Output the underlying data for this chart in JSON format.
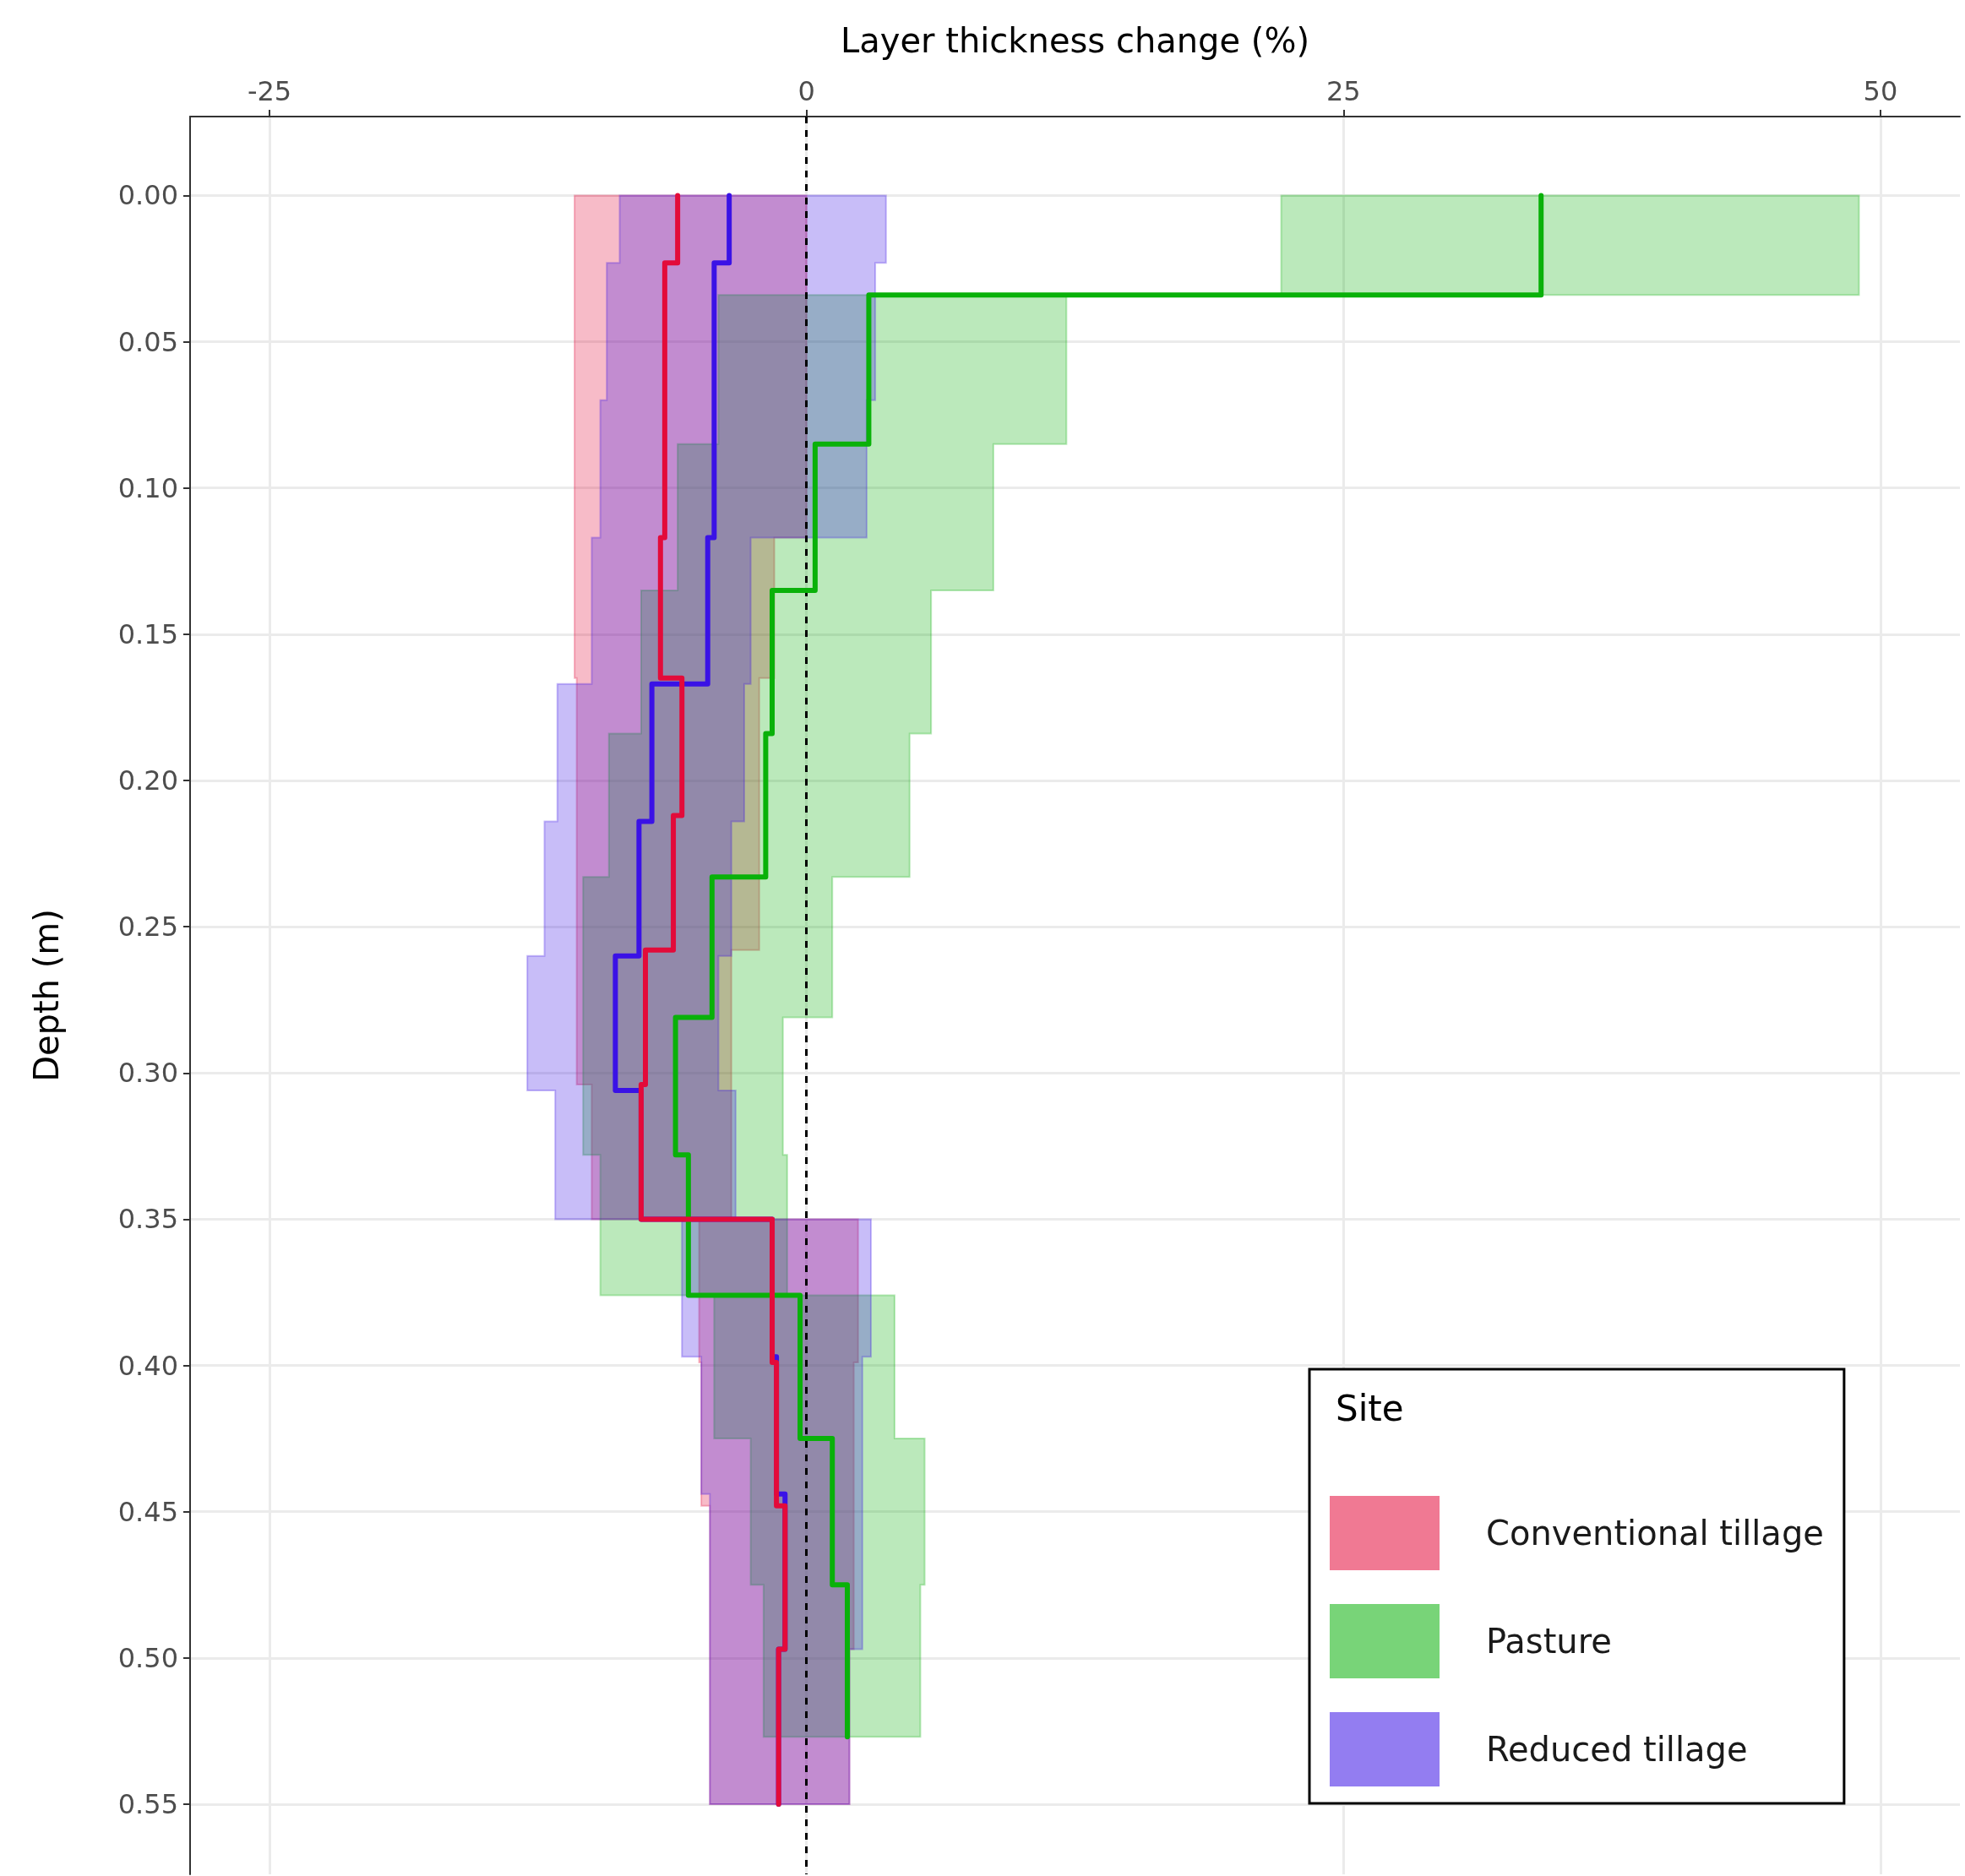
{
  "chart_data": {
    "type": "step",
    "orientation": "horizontal",
    "xlabel": "Layer thickness change (%)",
    "ylabel": "Depth (m)",
    "legend_title": "Site",
    "legend": "bottom right",
    "grid": true,
    "xlim": [
      -28.7,
      53.7
    ],
    "xticks": [
      -25,
      0,
      25,
      50
    ],
    "ylim": [
      0.574,
      -0.027
    ],
    "yticks": [
      {
        "value": 0,
        "label": "0.00"
      },
      0.05,
      {
        "value": 0.1,
        "label": "0.10"
      },
      0.15,
      {
        "value": 0.2,
        "label": "0.20"
      },
      0.25,
      {
        "value": 0.3,
        "label": "0.30"
      },
      0.35,
      {
        "value": 0.4,
        "label": "0.40"
      },
      0.45,
      {
        "value": 0.5,
        "label": "0.50"
      },
      0.55
    ],
    "ref_lines": [
      {
        "axis": "x",
        "value": 0,
        "color": "#000000",
        "line_style": "dashed"
      }
    ],
    "series": [
      {
        "name": "Conventional tillage",
        "color": "#e30b3a",
        "x": [
          0,
          0.023,
          0.07,
          0.117,
          0.165,
          0.212,
          0.258,
          0.304,
          0.35,
          0.399,
          0.448,
          0.497,
          0.55
        ],
        "values": [
          -6.0,
          -6.6,
          -6.6,
          -6.8,
          -5.8,
          -6.2,
          -7.5,
          -7.7,
          -1.6,
          -1.4,
          -1.0,
          -1.3,
          -1.3
        ],
        "lower": [
          -10.8,
          -10.8,
          -10.8,
          -10.8,
          -10.7,
          -10.7,
          -10.7,
          -10.0,
          -5.0,
          -4.9,
          -4.5,
          -4.5,
          -4.5
        ],
        "upper": [
          0,
          0,
          0,
          -1.5,
          -2.2,
          -2.2,
          -3.5,
          -3.5,
          2.4,
          2.2,
          2.2,
          2.0,
          2.0
        ]
      },
      {
        "name": "Pasture",
        "color": "#09b109",
        "x": [
          0,
          0.034,
          0.085,
          0.135,
          0.184,
          0.233,
          0.281,
          0.328,
          0.376,
          0.425,
          0.475,
          0.527
        ],
        "values": [
          34.2,
          2.9,
          0.4,
          -1.6,
          -1.9,
          -4.4,
          -6.1,
          -5.5,
          -0.3,
          1.2,
          1.9,
          1.9
        ],
        "lower": [
          22.1,
          -4.1,
          -6.0,
          -7.7,
          -9.2,
          -10.4,
          -10.4,
          -9.6,
          -4.3,
          -2.6,
          -2.0,
          -2.0
        ],
        "upper": [
          49.0,
          12.1,
          8.7,
          5.8,
          4.8,
          1.2,
          -1.1,
          -0.9,
          4.1,
          5.5,
          5.3,
          5.3
        ]
      },
      {
        "name": "Reduced tillage",
        "color": "#3a12e6",
        "x": [
          0,
          0.023,
          0.07,
          0.117,
          0.167,
          0.214,
          0.26,
          0.306,
          0.35,
          0.397,
          0.444,
          0.497,
          0.55
        ],
        "values": [
          -3.6,
          -4.3,
          -4.3,
          -4.6,
          -7.2,
          -7.8,
          -8.9,
          -7.7,
          -1.6,
          -1.4,
          -1.0,
          -1.3,
          -1.3
        ],
        "lower": [
          -8.7,
          -9.3,
          -9.6,
          -10.0,
          -11.6,
          -12.2,
          -13.0,
          -11.7,
          -5.8,
          -4.9,
          -4.5,
          -4.5,
          -4.5
        ],
        "upper": [
          3.7,
          3.2,
          2.8,
          -2.6,
          -2.9,
          -3.5,
          -4.1,
          -3.3,
          3.0,
          2.6,
          2.6,
          2.0,
          2.0
        ]
      }
    ]
  }
}
